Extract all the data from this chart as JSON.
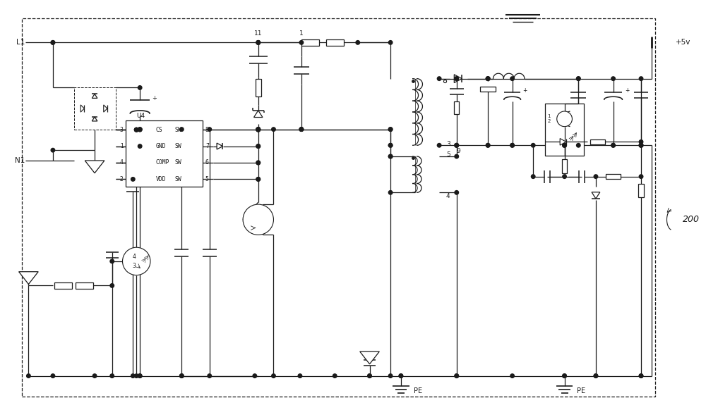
{
  "line_color": "#1a1a1a",
  "bg_color": "#ffffff",
  "dash_color": "#444444",
  "label_L1": "L1",
  "label_N1": "N1",
  "label_U4": "U4",
  "label_5v": "+5v",
  "label_PE": "PE",
  "label_200": "200",
  "figsize": [
    10.0,
    5.92
  ],
  "dpi": 100
}
